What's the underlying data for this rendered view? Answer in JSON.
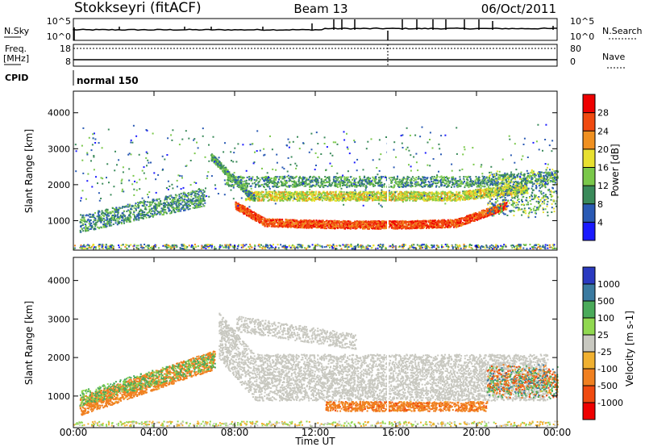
{
  "header": {
    "station": "Stokkseyri (fitACF)",
    "beam": "Beam 13",
    "date": "06/Oct/2011"
  },
  "top_panel": {
    "left_label": "N.Sky",
    "left_ticks": [
      "10^5",
      "10^0"
    ],
    "right_label": "N.Search",
    "right_ticks": [
      "10^5",
      "10^0"
    ]
  },
  "freq_panel": {
    "left_label_1": "Freq.",
    "left_label_2": "[MHz]",
    "left_ticks": [
      "18",
      "8"
    ],
    "right_label": "Nave",
    "right_ticks": [
      "80",
      "0"
    ]
  },
  "cpid_panel": {
    "label": "CPID",
    "value": "normal 150"
  },
  "x_axis": {
    "ticks": [
      "00:00",
      "04:00",
      "08:00",
      "12:00",
      "16:00",
      "20:00",
      "00:00"
    ],
    "label": "Time UT"
  },
  "y_axis": {
    "ticks": [
      "1000",
      "2000",
      "3000",
      "4000"
    ],
    "label": "Slant Range [km]"
  },
  "power_colorbar": {
    "label": "Power [dB]",
    "ticks": [
      "4",
      "8",
      "12",
      "16",
      "20",
      "24",
      "28"
    ],
    "colors": [
      "#1a1aff",
      "#2a5ab4",
      "#3a8a5a",
      "#7ac84a",
      "#e8e030",
      "#f09020",
      "#f04a10",
      "#ee0000"
    ]
  },
  "velocity_colorbar": {
    "label": "Velocity [m s-1]",
    "ticks": [
      "1000",
      "500",
      "100",
      "25",
      "-25",
      "-100",
      "-500",
      "-1000"
    ],
    "colors": [
      "#2a3ac0",
      "#3a7aa0",
      "#4aaa5a",
      "#90d850",
      "#c8c8c0",
      "#f0b030",
      "#f08020",
      "#f04a10",
      "#ee0000"
    ]
  },
  "chart_data": [
    {
      "type": "heatmap",
      "title": "Power",
      "xlabel": "Time UT",
      "ylabel": "Slant Range [km]",
      "xlim": [
        "00:00",
        "24:00"
      ],
      "ylim": [
        180,
        4600
      ],
      "colorbar_label": "Power [dB]",
      "colorbar_range": [
        0,
        30
      ],
      "regions": [
        {
          "t_start": 7.8,
          "t_end": 21.5,
          "range_center_km": 1000,
          "description": "strong",
          "value_db": 26
        },
        {
          "t_start": 8.5,
          "t_end": 22.0,
          "range_center_km": 1700,
          "value_db": 18
        },
        {
          "t_start": 0.0,
          "t_end": 24.0,
          "range_center_km": 2100,
          "value_db": 12
        },
        {
          "t_start": 0.5,
          "t_end": 6.0,
          "range_center_km": 1300,
          "value_db": 10
        }
      ]
    },
    {
      "type": "heatmap",
      "title": "Velocity",
      "xlabel": "Time UT",
      "ylabel": "Slant Range [km]",
      "xlim": [
        "00:00",
        "24:00"
      ],
      "ylim": [
        180,
        4600
      ],
      "colorbar_label": "Velocity [m s-1]",
      "colorbar_range": [
        -1000,
        1000
      ],
      "regions": [
        {
          "t_start": 7.0,
          "t_end": 23.0,
          "range_center_km": 1500,
          "value_ms": 0
        },
        {
          "t_start": 0.0,
          "t_end": 7.0,
          "range_center_km": 1000,
          "value_ms": -150
        },
        {
          "t_start": 12.0,
          "t_end": 20.0,
          "range_center_km": 800,
          "value_ms": -200
        }
      ]
    }
  ]
}
